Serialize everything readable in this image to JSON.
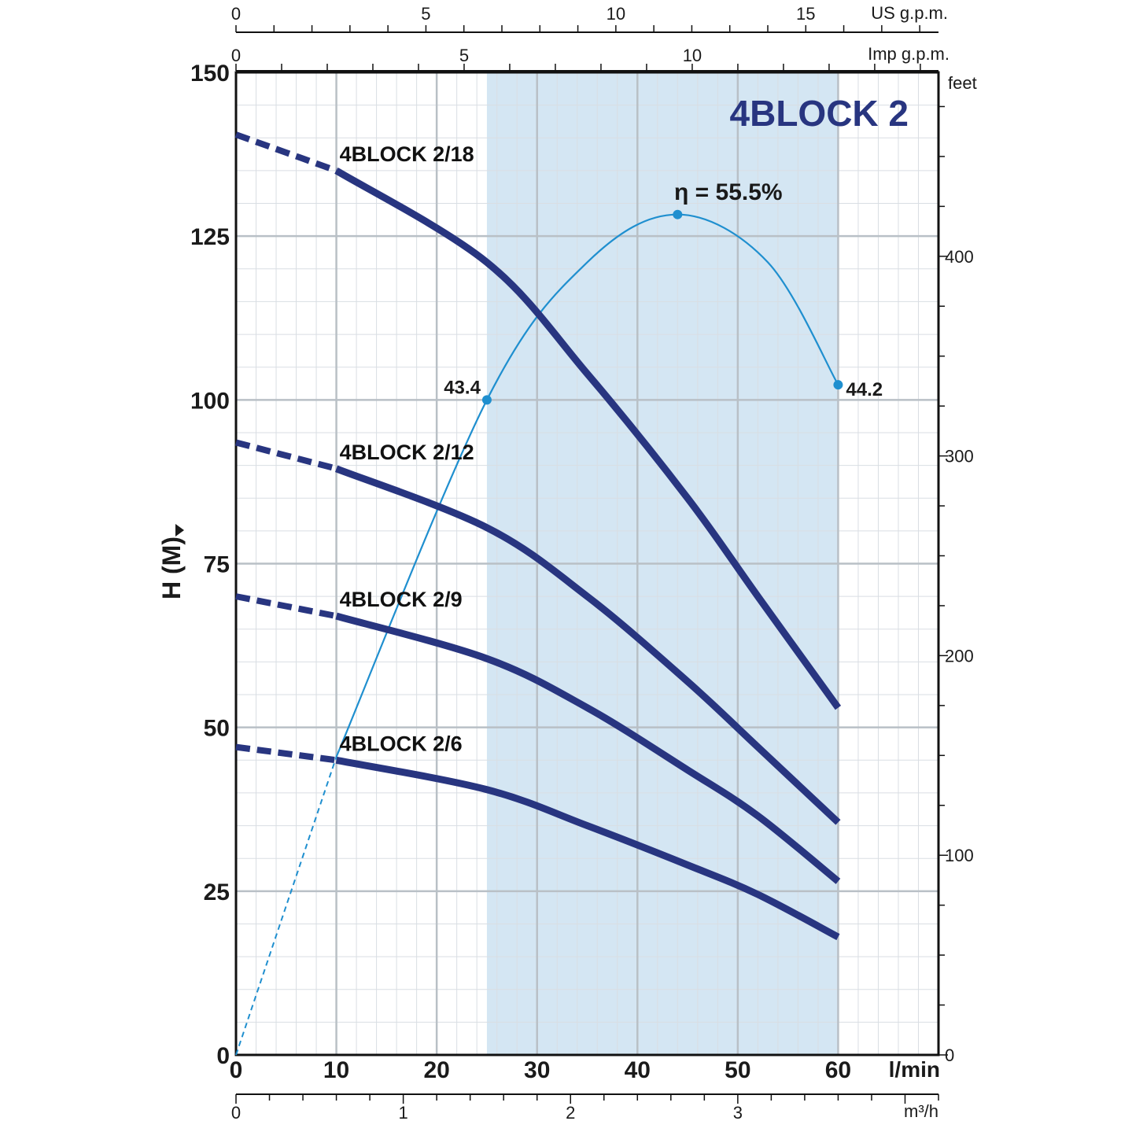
{
  "chart_data": {
    "type": "line",
    "title": "4BLOCK 2",
    "xlabel": "l/min",
    "ylabel": "H (M)",
    "xlim": [
      0,
      70
    ],
    "ylim": [
      0,
      150
    ],
    "x_ticks": [
      0,
      10,
      20,
      30,
      40,
      50,
      60
    ],
    "y_ticks": [
      0,
      25,
      50,
      75,
      100,
      125,
      150
    ],
    "secondary_axes": {
      "us_gpm": {
        "label": "US g.p.m.",
        "ticks": [
          0,
          5,
          10,
          15
        ]
      },
      "imp_gpm": {
        "label": "Imp g.p.m.",
        "ticks": [
          0,
          5,
          10
        ]
      },
      "m3h": {
        "label": "m³/h",
        "ticks": [
          0,
          1,
          2,
          3
        ]
      },
      "feet": {
        "label": "feet",
        "ticks": [
          0,
          100,
          200,
          300,
          400
        ]
      }
    },
    "operating_range": {
      "x": [
        25,
        60
      ]
    },
    "series": [
      {
        "name": "4BLOCK 2/18",
        "x": [
          0,
          10,
          25,
          35,
          45,
          52,
          60
        ],
        "y": [
          140.5,
          135,
          121,
          104,
          85,
          70,
          53
        ]
      },
      {
        "name": "4BLOCK 2/12",
        "x": [
          0,
          10,
          25,
          35,
          45,
          52,
          60
        ],
        "y": [
          93.5,
          89.5,
          80.5,
          70,
          57,
          47,
          35.5
        ]
      },
      {
        "name": "4BLOCK 2/9",
        "x": [
          0,
          10,
          25,
          35,
          45,
          52,
          60
        ],
        "y": [
          70,
          67,
          60.5,
          53,
          43.5,
          36.5,
          26.5
        ]
      },
      {
        "name": "4BLOCK 2/6",
        "x": [
          0,
          10,
          25,
          35,
          45,
          52,
          60
        ],
        "y": [
          47,
          45,
          40.5,
          35,
          29,
          24.5,
          18
        ]
      }
    ],
    "efficiency": {
      "label": "η = 55.5%",
      "x": [
        0,
        10,
        25,
        35,
        44,
        53,
        60
      ],
      "y": [
        0,
        45.5,
        100,
        121,
        128.3,
        121,
        102.3
      ],
      "points": [
        {
          "x": 25,
          "y": 100,
          "label": "43.4"
        },
        {
          "x": 44,
          "y": 128.3,
          "label": ""
        },
        {
          "x": 60,
          "y": 102.3,
          "label": "44.2"
        }
      ]
    },
    "grid": true
  }
}
